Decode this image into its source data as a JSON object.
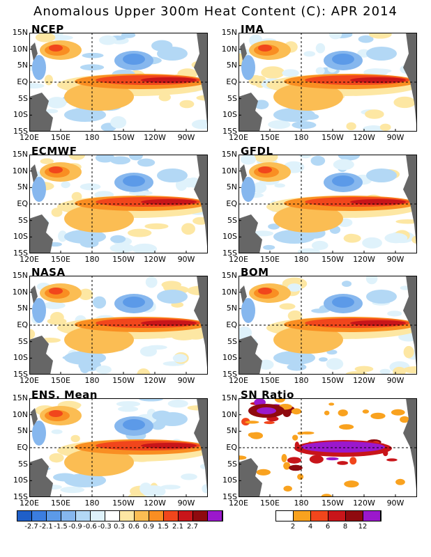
{
  "title": "Anomalous Upper 300m Heat Content (C): APR 2014",
  "lat_labels": [
    "15N",
    "10N",
    "5N",
    "EQ",
    "5S",
    "10S",
    "15S"
  ],
  "lon_labels": [
    "120E",
    "150E",
    "180",
    "150W",
    "120W",
    "90W"
  ],
  "panels": [
    {
      "name": "NCEP",
      "kind": "anomaly"
    },
    {
      "name": "JMA",
      "kind": "anomaly"
    },
    {
      "name": "ECMWF",
      "kind": "anomaly"
    },
    {
      "name": "GFDL",
      "kind": "anomaly"
    },
    {
      "name": "NASA",
      "kind": "anomaly"
    },
    {
      "name": "BOM",
      "kind": "anomaly"
    },
    {
      "name": "ENS. Mean",
      "kind": "anomaly"
    },
    {
      "name": "SN Ratio",
      "kind": "ratio"
    }
  ],
  "anomaly_colorbar": {
    "colors": [
      "#1f5fc8",
      "#3b7de0",
      "#5c9ae8",
      "#86b7ee",
      "#b3d8f5",
      "#dff2fb",
      "#ffffff",
      "#fde7a3",
      "#fbbd53",
      "#f98e22",
      "#f1461c",
      "#c8151a",
      "#8f0a0f",
      "#9b18cc"
    ],
    "labels": [
      "-2.7",
      "-2.1",
      "-1.5",
      "-0.9",
      "-0.6",
      "-0.3",
      "0.3",
      "0.6",
      "0.9",
      "1.5",
      "2.1",
      "2.7"
    ]
  },
  "ratio_colorbar": {
    "colors": [
      "#ffffff",
      "#f9a21f",
      "#f1461c",
      "#c8151a",
      "#8f0a0f",
      "#9b18cc"
    ],
    "labels": [
      "2",
      "4",
      "6",
      "8",
      "12"
    ]
  }
}
